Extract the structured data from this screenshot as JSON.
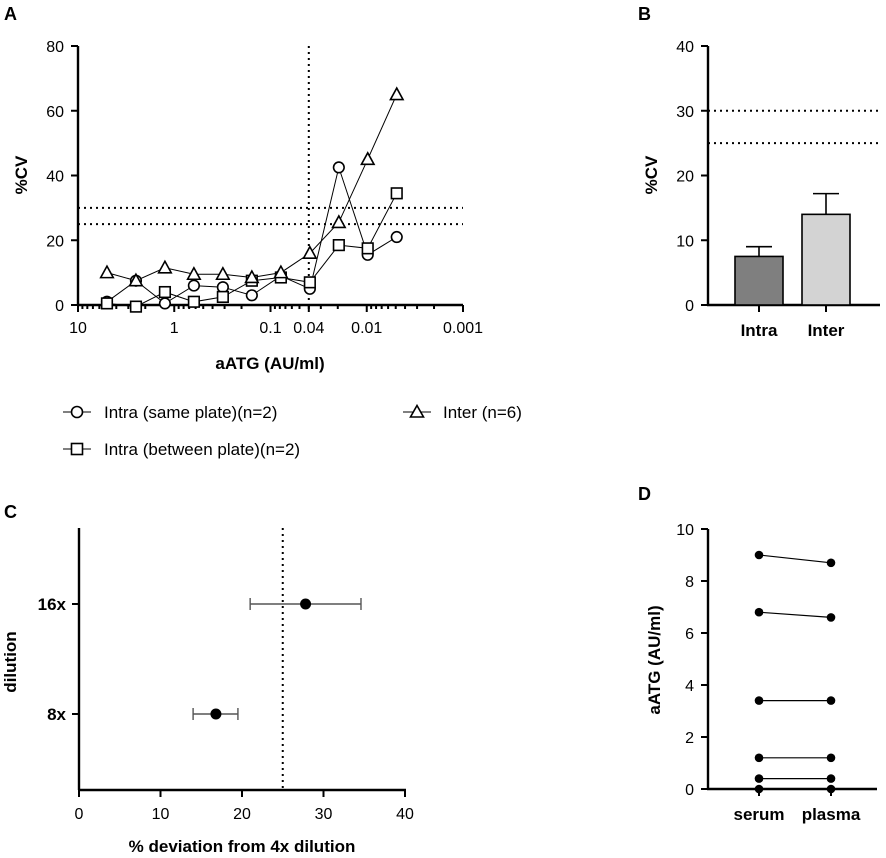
{
  "chart_data": [
    {
      "panel": "A",
      "type": "line",
      "xscale": "log-reversed",
      "xlabel": "aATG (AU/ml)",
      "ylabel": "%CV",
      "xlim": [
        10,
        0.001
      ],
      "ylim": [
        0,
        80
      ],
      "xticks": [
        {
          "value": 10,
          "label": "10"
        },
        {
          "value": 1,
          "label": "1"
        },
        {
          "value": 0.1,
          "label": "0.1"
        },
        {
          "value": 0.04,
          "label": "0.04"
        },
        {
          "value": 0.01,
          "label": "0.01"
        },
        {
          "value": 0.001,
          "label": "0.001"
        }
      ],
      "yticks": [
        0,
        20,
        40,
        60,
        80
      ],
      "ytick_labels": [
        "0",
        "20",
        "40",
        "60",
        "80"
      ],
      "vline": 0.04,
      "hlines": [
        30,
        25
      ],
      "x": [
        5,
        2.5,
        1.25,
        0.625,
        0.3125,
        0.15625,
        0.078,
        0.039,
        0.0195,
        0.00977,
        0.00488
      ],
      "series": [
        {
          "name": "Intra (same plate)(n=2)",
          "marker": "circle",
          "values": [
            1,
            7.5,
            0.5,
            6,
            5.5,
            3,
            9,
            5,
            42.5,
            15.5,
            21
          ]
        },
        {
          "name": "Intra (between plate)(n=2)",
          "marker": "square",
          "values": [
            0.5,
            -0.5,
            4,
            1,
            2.5,
            7.5,
            8.5,
            7,
            18.5,
            17.5,
            34.5
          ]
        },
        {
          "name": "Inter (n=6)",
          "marker": "triangle",
          "values": [
            10,
            7.5,
            11.5,
            9.5,
            9.5,
            8.5,
            10,
            16,
            25.5,
            45,
            65
          ]
        }
      ]
    },
    {
      "panel": "B",
      "type": "bar",
      "ylabel": "%CV",
      "ylim": [
        0,
        40
      ],
      "yticks": [
        0,
        10,
        20,
        30,
        40
      ],
      "ytick_labels": [
        "0",
        "10",
        "20",
        "30",
        "40"
      ],
      "categories": [
        "Intra",
        "Inter"
      ],
      "values": [
        7.5,
        14
      ],
      "errors": [
        1.5,
        3.2
      ],
      "colors": [
        "#7f7f7f",
        "#d3d3d3"
      ],
      "hlines": [
        30,
        25
      ]
    },
    {
      "panel": "C",
      "type": "scatter",
      "xlabel": "% deviation from 4x dilution",
      "ylabel": "dilution",
      "xlim": [
        0,
        40
      ],
      "xticks": [
        0,
        10,
        20,
        30,
        40
      ],
      "xtick_labels": [
        "0",
        "10",
        "20",
        "30",
        "40"
      ],
      "categories": [
        "16x",
        "8x"
      ],
      "values": [
        27.8,
        16.8
      ],
      "xerr_low": [
        21,
        14
      ],
      "xerr_high": [
        34.6,
        19.5
      ],
      "vline": 25
    },
    {
      "panel": "D",
      "type": "line",
      "ylabel": "aATG (AU/ml)",
      "ylim": [
        0,
        10
      ],
      "yticks": [
        0,
        2,
        4,
        6,
        8,
        10
      ],
      "ytick_labels": [
        "0",
        "2",
        "4",
        "6",
        "8",
        "10"
      ],
      "categories": [
        "serum",
        "plasma"
      ],
      "pairs": [
        [
          9.0,
          8.7
        ],
        [
          6.8,
          6.6
        ],
        [
          3.4,
          3.4
        ],
        [
          1.2,
          1.2
        ],
        [
          0.4,
          0.4
        ],
        [
          0.0,
          0.0
        ]
      ]
    }
  ]
}
